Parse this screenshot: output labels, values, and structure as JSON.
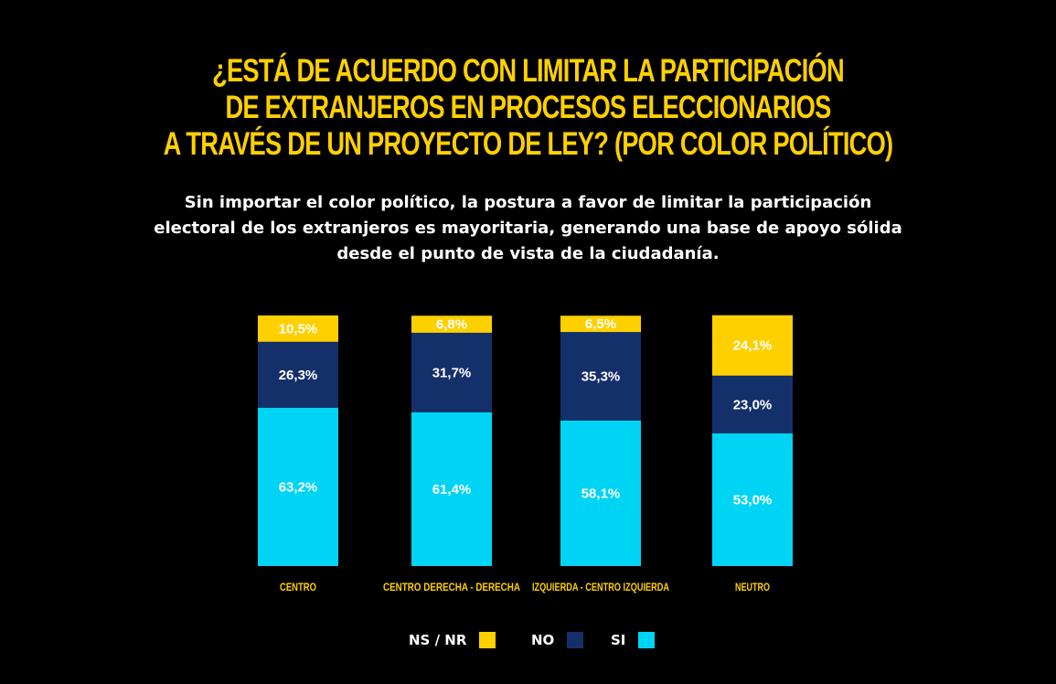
{
  "title_lines": [
    "¿ESTÁ DE ACUERDO CON LIMITAR LA PARTICIPACIÓN",
    "DE EXTRANJEROS EN PROCESOS ELECCIONARIOS",
    "A TRAVÉS DE UN PROYECTO DE LEY? (POR COLOR POLÍTICO)"
  ],
  "subtitle_lines": [
    "Sin importar el color político, la postura a favor de limitar la participación",
    "electoral de los extranjeros es mayoritaria, generando una base de apoyo sólida",
    "desde el punto de vista de la ciudadanía."
  ],
  "colors": {
    "background": "#000000",
    "title": "#FFD000",
    "ns_nr": "#FFD000",
    "no": "#14306B",
    "si": "#00D4F5"
  },
  "legend": {
    "ns_nr": "NS / NR",
    "no": "NO",
    "si": "SI"
  },
  "chart_data": {
    "type": "bar",
    "stacked": true,
    "percent_stacked": true,
    "categories": [
      "CENTRO",
      "CENTRO DERECHA - DERECHA",
      "IZQUIERDA - CENTRO IZQUIERDA",
      "NEUTRO"
    ],
    "series": [
      {
        "name": "SI",
        "values": [
          63.2,
          61.4,
          58.1,
          53.0
        ],
        "labels": [
          "63,2%",
          "61,4%",
          "58,1%",
          "53,0%"
        ]
      },
      {
        "name": "NO",
        "values": [
          26.3,
          31.7,
          35.3,
          23.0
        ],
        "labels": [
          "26,3%",
          "31,7%",
          "35,3%",
          "23,0%"
        ]
      },
      {
        "name": "NS / NR",
        "values": [
          10.5,
          6.8,
          6.5,
          24.1
        ],
        "labels": [
          "10,5%",
          "6,8%",
          "6,5%",
          "24,1%"
        ]
      }
    ],
    "ylim": [
      0,
      100
    ],
    "grid": false,
    "legend_position": "bottom"
  }
}
